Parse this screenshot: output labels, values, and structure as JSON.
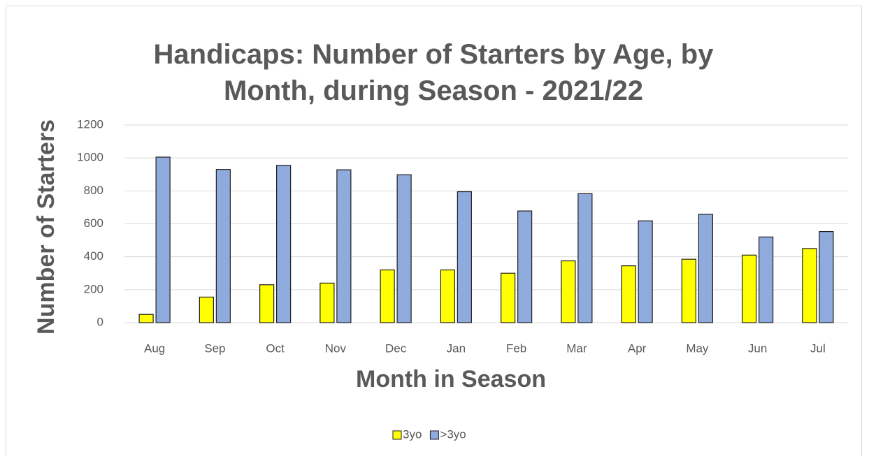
{
  "chart_data": {
    "type": "bar",
    "title": "Handicaps: Number of Starters by Age, by Month, during Season - 2021/22",
    "x_label": "Month in Season",
    "y_label": "Number of Starters",
    "categories": [
      "Aug",
      "Sep",
      "Oct",
      "Nov",
      "Dec",
      "Jan",
      "Feb",
      "Mar",
      "Apr",
      "May",
      "Jun",
      "Jul"
    ],
    "series": [
      {
        "name": "3yo",
        "color": "#ffff00",
        "values": [
          50,
          155,
          230,
          240,
          320,
          320,
          300,
          375,
          345,
          385,
          410,
          450
        ]
      },
      {
        "name": ">3yo",
        "color": "#8faadc",
        "values": [
          1005,
          930,
          955,
          928,
          898,
          795,
          678,
          783,
          618,
          658,
          520,
          553
        ]
      }
    ],
    "ylim": [
      0,
      1200
    ],
    "yticks": [
      0,
      200,
      400,
      600,
      800,
      1000,
      1200
    ],
    "grid": true,
    "legend": "bottom"
  }
}
